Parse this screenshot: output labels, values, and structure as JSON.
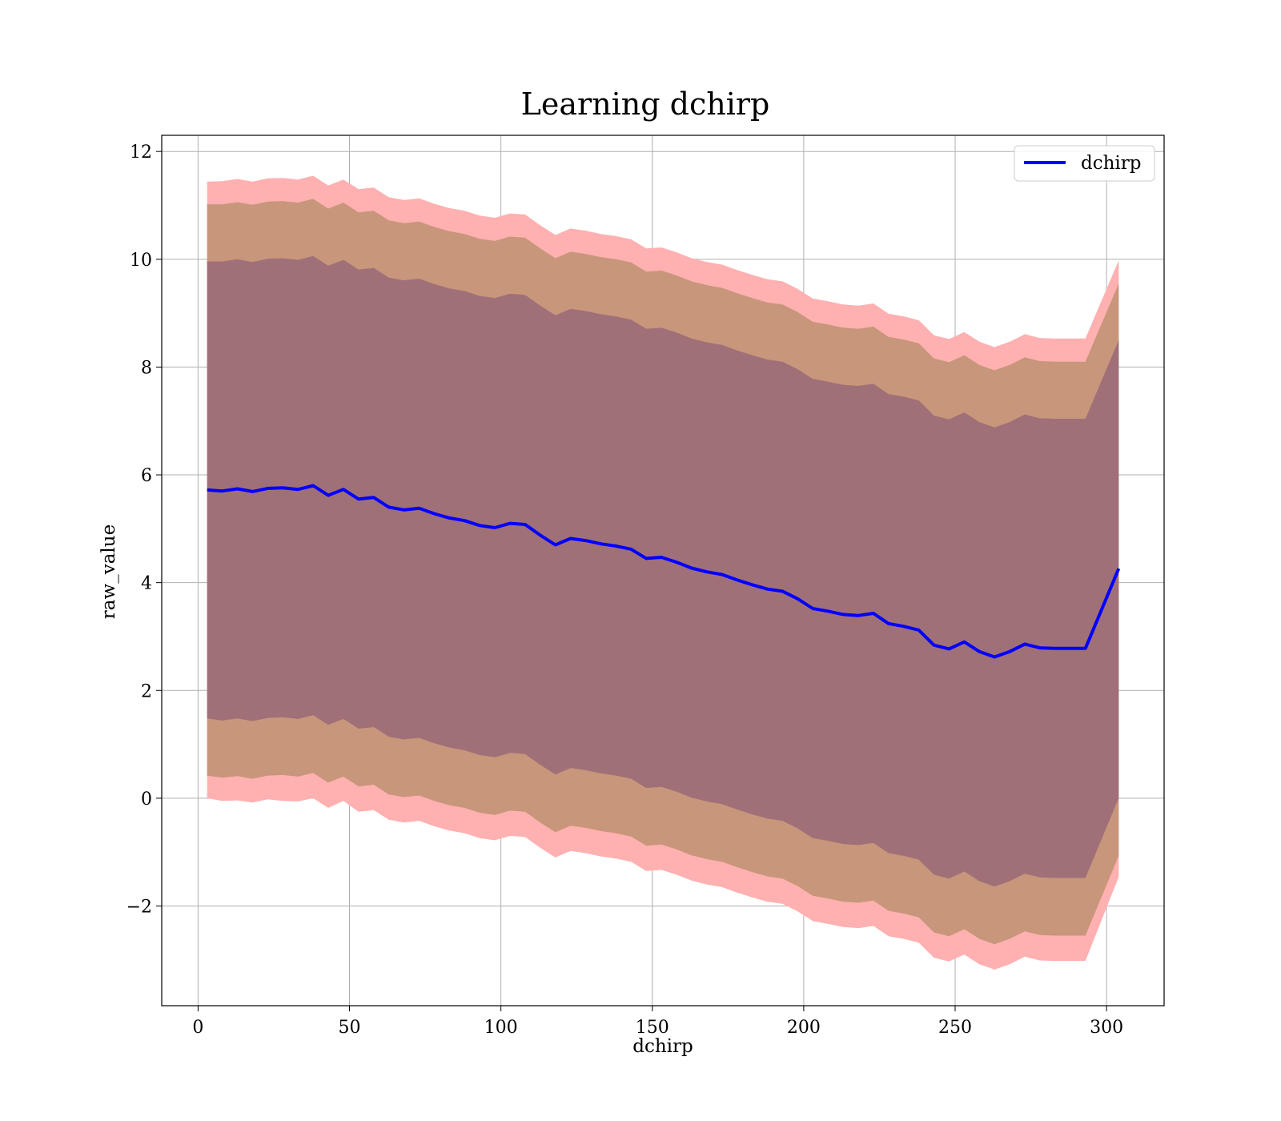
{
  "chart_data": {
    "type": "line",
    "title": "Learning dchirp",
    "xlabel": "dchirp",
    "ylabel": "raw_value",
    "xlim": [
      -12,
      319
    ],
    "ylim": [
      -3.85,
      12.3
    ],
    "xticks": [
      0,
      50,
      100,
      150,
      200,
      250,
      300
    ],
    "yticks": [
      -2,
      0,
      2,
      4,
      6,
      8,
      10,
      12
    ],
    "xtick_labels": [
      "0",
      "50",
      "100",
      "150",
      "200",
      "250",
      "300"
    ],
    "ytick_labels": [
      "−2",
      "0",
      "2",
      "4",
      "6",
      "8",
      "10",
      "12"
    ],
    "grid": true,
    "legend": {
      "position": "top-right",
      "entries": [
        "dchirp"
      ]
    },
    "colors": {
      "line": "#0000ff",
      "band_outer": "#ffb0b0",
      "band_middle": "#c8967b",
      "band_inner": "#a07078"
    },
    "x": [
      3,
      8,
      13,
      18,
      23,
      28,
      33,
      38,
      43,
      48,
      53,
      58,
      63,
      68,
      73,
      78,
      83,
      88,
      93,
      98,
      103,
      108,
      113,
      118,
      123,
      128,
      133,
      138,
      143,
      148,
      153,
      158,
      163,
      168,
      173,
      178,
      183,
      188,
      193,
      198,
      203,
      208,
      213,
      218,
      223,
      228,
      233,
      238,
      243,
      248,
      253,
      258,
      263,
      268,
      273,
      278,
      283,
      288,
      293,
      304
    ],
    "series": [
      {
        "name": "dchirp",
        "values": [
          5.72,
          5.7,
          5.74,
          5.69,
          5.75,
          5.76,
          5.73,
          5.8,
          5.62,
          5.73,
          5.55,
          5.58,
          5.4,
          5.35,
          5.38,
          5.28,
          5.2,
          5.15,
          5.06,
          5.02,
          5.1,
          5.08,
          4.88,
          4.7,
          4.82,
          4.78,
          4.72,
          4.68,
          4.62,
          4.45,
          4.47,
          4.38,
          4.27,
          4.2,
          4.15,
          4.05,
          3.96,
          3.88,
          3.84,
          3.7,
          3.52,
          3.47,
          3.41,
          3.39,
          3.43,
          3.24,
          3.19,
          3.12,
          2.84,
          2.77,
          2.9,
          2.72,
          2.62,
          2.72,
          2.86,
          2.79,
          2.78,
          2.78,
          2.78,
          4.26
        ]
      }
    ],
    "bands": [
      {
        "name": "outer",
        "lower": [
          0.0,
          -0.05,
          -0.04,
          -0.08,
          -0.02,
          -0.05,
          -0.06,
          0.0,
          -0.18,
          -0.05,
          -0.25,
          -0.22,
          -0.4,
          -0.45,
          -0.42,
          -0.52,
          -0.6,
          -0.65,
          -0.74,
          -0.78,
          -0.7,
          -0.72,
          -0.92,
          -1.1,
          -0.98,
          -1.02,
          -1.08,
          -1.12,
          -1.18,
          -1.35,
          -1.33,
          -1.42,
          -1.53,
          -1.6,
          -1.65,
          -1.75,
          -1.84,
          -1.92,
          -1.96,
          -2.1,
          -2.28,
          -2.33,
          -2.39,
          -2.41,
          -2.37,
          -2.56,
          -2.61,
          -2.68,
          -2.96,
          -3.03,
          -2.9,
          -3.08,
          -3.18,
          -3.08,
          -2.94,
          -3.01,
          -3.02,
          -3.02,
          -3.02,
          -1.46
        ],
        "upper": [
          11.44,
          11.45,
          11.49,
          11.44,
          11.5,
          11.51,
          11.48,
          11.55,
          11.37,
          11.48,
          11.3,
          11.33,
          11.15,
          11.1,
          11.13,
          11.03,
          10.95,
          10.9,
          10.81,
          10.77,
          10.85,
          10.83,
          10.63,
          10.45,
          10.57,
          10.53,
          10.47,
          10.43,
          10.37,
          10.2,
          10.22,
          10.13,
          10.02,
          9.95,
          9.9,
          9.8,
          9.71,
          9.63,
          9.59,
          9.45,
          9.27,
          9.22,
          9.16,
          9.14,
          9.18,
          8.99,
          8.94,
          8.87,
          8.59,
          8.52,
          8.65,
          8.47,
          8.37,
          8.47,
          8.61,
          8.54,
          8.53,
          8.53,
          8.53,
          9.98
        ]
      },
      {
        "name": "middle",
        "lower": [
          0.42,
          0.38,
          0.41,
          0.36,
          0.42,
          0.43,
          0.4,
          0.47,
          0.29,
          0.4,
          0.22,
          0.25,
          0.07,
          0.02,
          0.05,
          -0.05,
          -0.13,
          -0.18,
          -0.27,
          -0.31,
          -0.23,
          -0.25,
          -0.45,
          -0.63,
          -0.51,
          -0.55,
          -0.61,
          -0.65,
          -0.71,
          -0.88,
          -0.86,
          -0.95,
          -1.06,
          -1.13,
          -1.18,
          -1.28,
          -1.37,
          -1.45,
          -1.49,
          -1.63,
          -1.81,
          -1.86,
          -1.92,
          -1.94,
          -1.9,
          -2.09,
          -2.14,
          -2.21,
          -2.49,
          -2.56,
          -2.43,
          -2.61,
          -2.71,
          -2.61,
          -2.47,
          -2.54,
          -2.55,
          -2.55,
          -2.55,
          -1.07
        ],
        "upper": [
          11.02,
          11.02,
          11.06,
          11.01,
          11.07,
          11.08,
          11.05,
          11.12,
          10.94,
          11.05,
          10.87,
          10.9,
          10.72,
          10.67,
          10.7,
          10.6,
          10.52,
          10.47,
          10.38,
          10.34,
          10.42,
          10.4,
          10.2,
          10.02,
          10.14,
          10.1,
          10.04,
          10.0,
          9.94,
          9.77,
          9.79,
          9.7,
          9.59,
          9.52,
          9.47,
          9.37,
          9.28,
          9.2,
          9.16,
          9.02,
          8.84,
          8.79,
          8.73,
          8.71,
          8.75,
          8.56,
          8.51,
          8.44,
          8.16,
          8.09,
          8.22,
          8.04,
          7.94,
          8.04,
          8.18,
          8.11,
          8.1,
          8.1,
          8.1,
          9.55
        ]
      },
      {
        "name": "inner",
        "lower": [
          1.48,
          1.44,
          1.48,
          1.43,
          1.49,
          1.5,
          1.47,
          1.54,
          1.36,
          1.47,
          1.29,
          1.32,
          1.14,
          1.09,
          1.12,
          1.02,
          0.94,
          0.89,
          0.8,
          0.76,
          0.84,
          0.82,
          0.62,
          0.44,
          0.56,
          0.52,
          0.46,
          0.42,
          0.36,
          0.19,
          0.21,
          0.12,
          0.01,
          -0.06,
          -0.11,
          -0.21,
          -0.3,
          -0.38,
          -0.42,
          -0.56,
          -0.74,
          -0.79,
          -0.85,
          -0.87,
          -0.83,
          -1.02,
          -1.07,
          -1.14,
          -1.42,
          -1.49,
          -1.36,
          -1.54,
          -1.64,
          -1.54,
          -1.4,
          -1.47,
          -1.48,
          -1.48,
          -1.48,
          0.0
        ],
        "upper": [
          9.96,
          9.96,
          10.0,
          9.95,
          10.01,
          10.02,
          9.99,
          10.06,
          9.88,
          9.99,
          9.81,
          9.84,
          9.66,
          9.61,
          9.64,
          9.54,
          9.46,
          9.41,
          9.32,
          9.28,
          9.36,
          9.34,
          9.14,
          8.96,
          9.08,
          9.04,
          8.98,
          8.94,
          8.88,
          8.71,
          8.73,
          8.64,
          8.53,
          8.46,
          8.41,
          8.31,
          8.22,
          8.14,
          8.1,
          7.96,
          7.78,
          7.73,
          7.67,
          7.65,
          7.69,
          7.5,
          7.45,
          7.38,
          7.1,
          7.03,
          7.16,
          6.98,
          6.88,
          6.98,
          7.12,
          7.05,
          7.04,
          7.04,
          7.04,
          8.5
        ]
      }
    ]
  }
}
